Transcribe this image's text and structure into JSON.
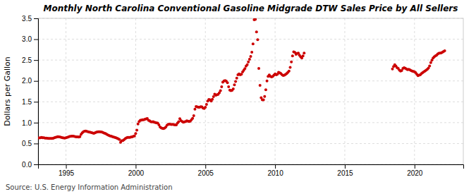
{
  "chart_data": {
    "type": "scatter",
    "title": "Monthly North Carolina Conventional Gasoline Midgrade DTW Sales Price by All Sellers",
    "y_label": "Dollars per Gallon",
    "source": "Source: U.S. Energy Information Administration",
    "color": "#cc0000",
    "grid": true,
    "xlim": [
      1993.0,
      2023.5
    ],
    "ylim": [
      0.0,
      3.5
    ],
    "xticks": [
      1995,
      2000,
      2005,
      2010,
      2015,
      2020
    ],
    "yticks": [
      {
        "value": 0.0,
        "label": "0.0"
      },
      0.5,
      {
        "value": 1.0,
        "label": "1.0"
      },
      1.5,
      {
        "value": 2.0,
        "label": "2.0"
      },
      2.5,
      {
        "value": 3.0,
        "label": "3.0"
      },
      3.5
    ],
    "x": [
      1993.0,
      1993.083,
      1993.167,
      1993.25,
      1993.333,
      1993.417,
      1993.5,
      1993.583,
      1993.667,
      1993.75,
      1993.833,
      1993.917,
      1994.0,
      1994.083,
      1994.167,
      1994.25,
      1994.333,
      1994.417,
      1994.5,
      1994.583,
      1994.667,
      1994.75,
      1994.833,
      1994.917,
      1995.0,
      1995.083,
      1995.167,
      1995.25,
      1995.333,
      1995.417,
      1995.5,
      1995.583,
      1995.667,
      1995.75,
      1995.833,
      1995.917,
      1996.0,
      1996.083,
      1996.167,
      1996.25,
      1996.333,
      1996.417,
      1996.5,
      1996.583,
      1996.667,
      1996.75,
      1996.833,
      1996.917,
      1997.0,
      1997.083,
      1997.167,
      1997.25,
      1997.333,
      1997.417,
      1997.5,
      1997.583,
      1997.667,
      1997.75,
      1997.833,
      1997.917,
      1998.0,
      1998.083,
      1998.167,
      1998.25,
      1998.333,
      1998.417,
      1998.5,
      1998.583,
      1998.667,
      1998.75,
      1998.833,
      1998.917,
      1999.0,
      1999.083,
      1999.167,
      1999.25,
      1999.333,
      1999.417,
      1999.5,
      1999.583,
      1999.667,
      1999.75,
      1999.833,
      1999.917,
      2000.0,
      2000.083,
      2000.167,
      2000.25,
      2000.333,
      2000.417,
      2000.5,
      2000.583,
      2000.667,
      2000.75,
      2000.833,
      2000.917,
      2001.0,
      2001.083,
      2001.167,
      2001.25,
      2001.333,
      2001.417,
      2001.5,
      2001.583,
      2001.667,
      2001.75,
      2001.833,
      2001.917,
      2002.0,
      2002.083,
      2002.167,
      2002.25,
      2002.333,
      2002.417,
      2002.5,
      2002.583,
      2002.667,
      2002.75,
      2002.833,
      2002.917,
      2003.0,
      2003.083,
      2003.167,
      2003.25,
      2003.333,
      2003.417,
      2003.5,
      2003.583,
      2003.667,
      2003.75,
      2003.833,
      2003.917,
      2004.0,
      2004.083,
      2004.167,
      2004.25,
      2004.333,
      2004.417,
      2004.5,
      2004.583,
      2004.667,
      2004.75,
      2004.833,
      2004.917,
      2005.0,
      2005.083,
      2005.167,
      2005.25,
      2005.333,
      2005.417,
      2005.5,
      2005.583,
      2005.667,
      2005.75,
      2005.833,
      2005.917,
      2006.0,
      2006.083,
      2006.167,
      2006.25,
      2006.333,
      2006.417,
      2006.5,
      2006.583,
      2006.667,
      2006.75,
      2006.833,
      2006.917,
      2007.0,
      2007.083,
      2007.167,
      2007.25,
      2007.333,
      2007.417,
      2007.5,
      2007.583,
      2007.667,
      2007.75,
      2007.833,
      2007.917,
      2008.0,
      2008.083,
      2008.167,
      2008.25,
      2008.333,
      2008.417,
      2008.5,
      2008.583,
      2008.667,
      2008.75,
      2008.833,
      2008.917,
      2009.0,
      2009.083,
      2009.167,
      2009.25,
      2009.333,
      2009.417,
      2009.5,
      2009.583,
      2009.667,
      2009.75,
      2009.833,
      2009.917,
      2010.0,
      2010.083,
      2010.167,
      2010.25,
      2010.333,
      2010.417,
      2010.5,
      2010.583,
      2010.667,
      2010.75,
      2010.833,
      2010.917,
      2011.0,
      2011.083,
      2011.167,
      2011.25,
      2011.333,
      2011.417,
      2011.5,
      2011.583,
      2011.667,
      2011.75,
      2011.833,
      2011.917,
      2012.0,
      2012.083,
      2018.417,
      2018.5,
      2018.583,
      2018.667,
      2018.75,
      2018.833,
      2018.917,
      2019.0,
      2019.083,
      2019.167,
      2019.25,
      2019.333,
      2019.417,
      2019.5,
      2019.583,
      2019.667,
      2019.75,
      2019.833,
      2019.917,
      2020.0,
      2020.083,
      2020.167,
      2020.25,
      2020.333,
      2020.417,
      2020.5,
      2020.583,
      2020.667,
      2020.75,
      2020.833,
      2020.917,
      2021.0,
      2021.083,
      2021.167,
      2021.25,
      2021.333,
      2021.417,
      2021.5,
      2021.583,
      2021.667,
      2021.75,
      2021.833,
      2021.917,
      2022.0,
      2022.083,
      2022.167
    ],
    "values": [
      0.635,
      0.635,
      0.64,
      0.645,
      0.64,
      0.638,
      0.63,
      0.628,
      0.625,
      0.622,
      0.622,
      0.62,
      0.62,
      0.625,
      0.638,
      0.648,
      0.655,
      0.662,
      0.66,
      0.655,
      0.648,
      0.64,
      0.635,
      0.63,
      0.638,
      0.645,
      0.655,
      0.668,
      0.672,
      0.678,
      0.675,
      0.67,
      0.665,
      0.66,
      0.658,
      0.655,
      0.665,
      0.72,
      0.755,
      0.782,
      0.795,
      0.8,
      0.79,
      0.782,
      0.775,
      0.768,
      0.76,
      0.752,
      0.745,
      0.755,
      0.768,
      0.778,
      0.78,
      0.782,
      0.778,
      0.772,
      0.762,
      0.75,
      0.738,
      0.722,
      0.708,
      0.695,
      0.682,
      0.675,
      0.665,
      0.655,
      0.648,
      0.638,
      0.625,
      0.612,
      0.598,
      0.53,
      0.568,
      0.572,
      0.59,
      0.618,
      0.635,
      0.648,
      0.648,
      0.648,
      0.655,
      0.66,
      0.672,
      0.68,
      0.74,
      0.818,
      0.968,
      1.028,
      1.058,
      1.062,
      1.068,
      1.068,
      1.082,
      1.092,
      1.098,
      1.058,
      1.042,
      1.025,
      1.018,
      1.025,
      1.012,
      1.002,
      0.995,
      0.988,
      0.948,
      0.898,
      0.875,
      0.862,
      0.858,
      0.872,
      0.895,
      0.938,
      0.958,
      0.965,
      0.958,
      0.955,
      0.958,
      0.952,
      0.945,
      0.948,
      0.988,
      1.025,
      1.095,
      1.048,
      1.028,
      1.012,
      1.018,
      1.028,
      1.042,
      1.035,
      1.028,
      1.035,
      1.068,
      1.105,
      1.168,
      1.322,
      1.388,
      1.378,
      1.368,
      1.368,
      1.382,
      1.378,
      1.348,
      1.338,
      1.368,
      1.438,
      1.518,
      1.555,
      1.548,
      1.518,
      1.558,
      1.625,
      1.682,
      1.658,
      1.668,
      1.678,
      1.718,
      1.765,
      1.862,
      1.968,
      1.998,
      2.008,
      1.995,
      1.958,
      1.858,
      1.778,
      1.768,
      1.775,
      1.808,
      1.908,
      1.988,
      2.068,
      2.148,
      2.168,
      2.148,
      2.162,
      2.215,
      2.255,
      2.295,
      2.355,
      2.388,
      2.455,
      2.518,
      2.588,
      2.688,
      2.885,
      3.468,
      3.475,
      3.175,
      2.988,
      2.298,
      1.895,
      1.598,
      1.545,
      1.548,
      1.628,
      1.788,
      1.998,
      2.108,
      2.145,
      2.108,
      2.098,
      2.108,
      2.138,
      2.168,
      2.148,
      2.162,
      2.208,
      2.195,
      2.178,
      2.148,
      2.132,
      2.138,
      2.155,
      2.178,
      2.205,
      2.235,
      2.325,
      2.455,
      2.598,
      2.698,
      2.685,
      2.638,
      2.658,
      2.668,
      2.618,
      2.578,
      2.548,
      2.598,
      2.668,
      2.285,
      2.348,
      2.388,
      2.355,
      2.318,
      2.298,
      2.258,
      2.235,
      2.248,
      2.298,
      2.318,
      2.305,
      2.285,
      2.268,
      2.278,
      2.265,
      2.248,
      2.238,
      2.228,
      2.218,
      2.198,
      2.158,
      2.128,
      2.138,
      2.148,
      2.178,
      2.198,
      2.218,
      2.235,
      2.258,
      2.278,
      2.308,
      2.358,
      2.438,
      2.498,
      2.548,
      2.578,
      2.598,
      2.618,
      2.648,
      2.665,
      2.668,
      2.672,
      2.688,
      2.705,
      2.722
    ]
  }
}
